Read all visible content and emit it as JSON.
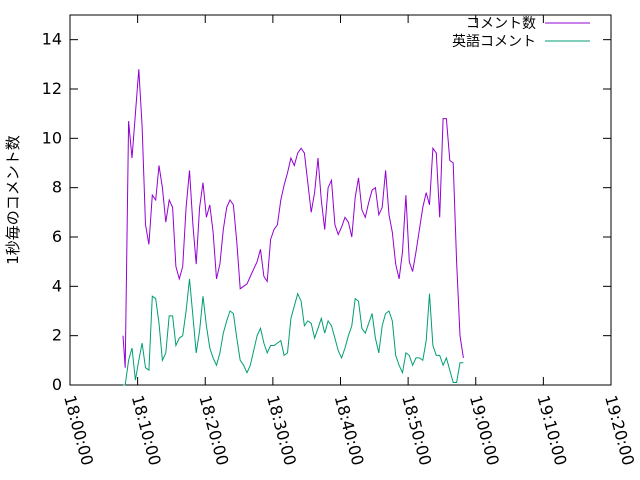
{
  "chart_data": {
    "type": "line",
    "title": "",
    "xlabel": "",
    "ylabel": "1秒毎のコメント数",
    "xlim": [
      "18:00:00",
      "19:20:00"
    ],
    "ylim": [
      0,
      15
    ],
    "yticks": [
      0,
      2,
      4,
      6,
      8,
      10,
      12,
      14
    ],
    "xticks": [
      "18:00:00",
      "18:10:00",
      "18:20:00",
      "18:30:00",
      "18:40:00",
      "18:50:00",
      "19:00:00",
      "19:10:00",
      "19:20:00"
    ],
    "grid": false,
    "legend_position": "top-right",
    "series": [
      {
        "name": "コメント数",
        "color": "#9400d3",
        "points": [
          [
            "18:07:50",
            2.0
          ],
          [
            "18:08:10",
            0.7
          ],
          [
            "18:08:40",
            10.7
          ],
          [
            "18:09:10",
            9.2
          ],
          [
            "18:09:40",
            11.0
          ],
          [
            "18:10:10",
            12.8
          ],
          [
            "18:10:40",
            10.5
          ],
          [
            "18:11:10",
            6.5
          ],
          [
            "18:11:40",
            5.7
          ],
          [
            "18:12:10",
            7.7
          ],
          [
            "18:12:40",
            7.5
          ],
          [
            "18:13:10",
            8.9
          ],
          [
            "18:13:40",
            8.0
          ],
          [
            "18:14:10",
            6.6
          ],
          [
            "18:14:40",
            7.5
          ],
          [
            "18:15:10",
            7.2
          ],
          [
            "18:15:40",
            4.8
          ],
          [
            "18:16:10",
            4.3
          ],
          [
            "18:16:40",
            4.8
          ],
          [
            "18:17:10",
            7.2
          ],
          [
            "18:17:40",
            8.7
          ],
          [
            "18:18:10",
            6.5
          ],
          [
            "18:18:40",
            4.9
          ],
          [
            "18:19:10",
            7.2
          ],
          [
            "18:19:40",
            8.2
          ],
          [
            "18:20:10",
            6.8
          ],
          [
            "18:20:40",
            7.3
          ],
          [
            "18:21:10",
            6.2
          ],
          [
            "18:21:40",
            4.3
          ],
          [
            "18:22:10",
            4.9
          ],
          [
            "18:22:40",
            6.3
          ],
          [
            "18:23:10",
            7.2
          ],
          [
            "18:23:40",
            7.5
          ],
          [
            "18:24:10",
            7.3
          ],
          [
            "18:24:40",
            5.8
          ],
          [
            "18:25:10",
            3.9
          ],
          [
            "18:25:40",
            4.0
          ],
          [
            "18:26:10",
            4.1
          ],
          [
            "18:26:40",
            4.4
          ],
          [
            "18:27:10",
            4.7
          ],
          [
            "18:27:40",
            5.0
          ],
          [
            "18:28:10",
            5.5
          ],
          [
            "18:28:40",
            4.4
          ],
          [
            "18:29:10",
            4.2
          ],
          [
            "18:29:40",
            5.9
          ],
          [
            "18:30:10",
            6.3
          ],
          [
            "18:30:40",
            6.5
          ],
          [
            "18:31:10",
            7.5
          ],
          [
            "18:31:40",
            8.1
          ],
          [
            "18:32:10",
            8.6
          ],
          [
            "18:32:40",
            9.2
          ],
          [
            "18:33:10",
            8.9
          ],
          [
            "18:33:40",
            9.4
          ],
          [
            "18:34:10",
            9.6
          ],
          [
            "18:34:40",
            9.4
          ],
          [
            "18:35:10",
            8.2
          ],
          [
            "18:35:40",
            7.0
          ],
          [
            "18:36:10",
            7.8
          ],
          [
            "18:36:40",
            9.2
          ],
          [
            "18:37:10",
            7.5
          ],
          [
            "18:37:40",
            6.3
          ],
          [
            "18:38:10",
            8.0
          ],
          [
            "18:38:40",
            8.3
          ],
          [
            "18:39:10",
            6.5
          ],
          [
            "18:39:40",
            6.1
          ],
          [
            "18:40:10",
            6.4
          ],
          [
            "18:40:40",
            6.8
          ],
          [
            "18:41:10",
            6.6
          ],
          [
            "18:41:40",
            6.0
          ],
          [
            "18:42:10",
            7.6
          ],
          [
            "18:42:40",
            8.4
          ],
          [
            "18:43:10",
            7.1
          ],
          [
            "18:43:40",
            6.8
          ],
          [
            "18:44:10",
            7.4
          ],
          [
            "18:44:40",
            7.9
          ],
          [
            "18:45:10",
            8.0
          ],
          [
            "18:45:40",
            6.9
          ],
          [
            "18:46:10",
            7.2
          ],
          [
            "18:46:40",
            8.7
          ],
          [
            "18:47:10",
            6.9
          ],
          [
            "18:47:40",
            6.2
          ],
          [
            "18:48:10",
            4.9
          ],
          [
            "18:48:40",
            4.3
          ],
          [
            "18:49:10",
            5.4
          ],
          [
            "18:49:40",
            7.7
          ],
          [
            "18:50:10",
            5.0
          ],
          [
            "18:50:40",
            4.6
          ],
          [
            "18:51:10",
            5.4
          ],
          [
            "18:51:40",
            6.3
          ],
          [
            "18:52:10",
            7.2
          ],
          [
            "18:52:40",
            7.8
          ],
          [
            "18:53:10",
            7.3
          ],
          [
            "18:53:40",
            9.6
          ],
          [
            "18:54:10",
            9.4
          ],
          [
            "18:54:40",
            6.8
          ],
          [
            "18:55:10",
            10.8
          ],
          [
            "18:55:40",
            10.8
          ],
          [
            "18:56:10",
            9.1
          ],
          [
            "18:56:40",
            9.0
          ],
          [
            "18:57:10",
            5.0
          ],
          [
            "18:57:40",
            2.0
          ],
          [
            "18:58:10",
            1.1
          ]
        ]
      },
      {
        "name": "英語コメント",
        "color": "#009e73",
        "points": [
          [
            "18:07:50",
            0.0
          ],
          [
            "18:08:10",
            0.0
          ],
          [
            "18:08:40",
            1.0
          ],
          [
            "18:09:10",
            1.5
          ],
          [
            "18:09:40",
            0.2
          ],
          [
            "18:10:10",
            1.0
          ],
          [
            "18:10:40",
            1.7
          ],
          [
            "18:11:10",
            0.7
          ],
          [
            "18:11:40",
            0.6
          ],
          [
            "18:12:10",
            3.6
          ],
          [
            "18:12:40",
            3.5
          ],
          [
            "18:13:10",
            2.5
          ],
          [
            "18:13:40",
            1.0
          ],
          [
            "18:14:10",
            1.3
          ],
          [
            "18:14:40",
            2.8
          ],
          [
            "18:15:10",
            2.8
          ],
          [
            "18:15:40",
            1.6
          ],
          [
            "18:16:10",
            1.9
          ],
          [
            "18:16:40",
            2.0
          ],
          [
            "18:17:10",
            3.0
          ],
          [
            "18:17:40",
            4.3
          ],
          [
            "18:18:10",
            2.8
          ],
          [
            "18:18:40",
            1.3
          ],
          [
            "18:19:10",
            2.2
          ],
          [
            "18:19:40",
            3.6
          ],
          [
            "18:20:10",
            2.4
          ],
          [
            "18:20:40",
            1.5
          ],
          [
            "18:21:10",
            1.1
          ],
          [
            "18:21:40",
            0.8
          ],
          [
            "18:22:10",
            1.3
          ],
          [
            "18:22:40",
            2.1
          ],
          [
            "18:23:10",
            2.6
          ],
          [
            "18:23:40",
            3.0
          ],
          [
            "18:24:10",
            2.9
          ],
          [
            "18:24:40",
            1.9
          ],
          [
            "18:25:10",
            1.0
          ],
          [
            "18:25:40",
            0.8
          ],
          [
            "18:26:10",
            0.5
          ],
          [
            "18:26:40",
            0.8
          ],
          [
            "18:27:10",
            1.4
          ],
          [
            "18:27:40",
            2.0
          ],
          [
            "18:28:10",
            2.3
          ],
          [
            "18:28:40",
            1.7
          ],
          [
            "18:29:10",
            1.3
          ],
          [
            "18:29:40",
            1.6
          ],
          [
            "18:30:10",
            1.6
          ],
          [
            "18:30:40",
            1.7
          ],
          [
            "18:31:10",
            1.8
          ],
          [
            "18:31:40",
            1.2
          ],
          [
            "18:32:10",
            1.3
          ],
          [
            "18:32:40",
            2.7
          ],
          [
            "18:33:10",
            3.2
          ],
          [
            "18:33:40",
            3.7
          ],
          [
            "18:34:10",
            3.4
          ],
          [
            "18:34:40",
            2.4
          ],
          [
            "18:35:10",
            2.6
          ],
          [
            "18:35:40",
            2.5
          ],
          [
            "18:36:10",
            1.9
          ],
          [
            "18:36:40",
            2.3
          ],
          [
            "18:37:10",
            2.7
          ],
          [
            "18:37:40",
            2.1
          ],
          [
            "18:38:10",
            2.6
          ],
          [
            "18:38:40",
            2.4
          ],
          [
            "18:39:10",
            1.9
          ],
          [
            "18:39:40",
            1.4
          ],
          [
            "18:40:10",
            1.1
          ],
          [
            "18:40:40",
            1.5
          ],
          [
            "18:41:10",
            2.0
          ],
          [
            "18:41:40",
            2.4
          ],
          [
            "18:42:10",
            3.5
          ],
          [
            "18:42:40",
            3.4
          ],
          [
            "18:43:10",
            2.3
          ],
          [
            "18:43:40",
            2.1
          ],
          [
            "18:44:10",
            2.5
          ],
          [
            "18:44:40",
            2.9
          ],
          [
            "18:45:10",
            1.9
          ],
          [
            "18:45:40",
            1.3
          ],
          [
            "18:46:10",
            2.4
          ],
          [
            "18:46:40",
            2.9
          ],
          [
            "18:47:10",
            3.0
          ],
          [
            "18:47:40",
            2.6
          ],
          [
            "18:48:10",
            1.2
          ],
          [
            "18:48:40",
            0.8
          ],
          [
            "18:49:10",
            0.5
          ],
          [
            "18:49:40",
            1.3
          ],
          [
            "18:50:10",
            1.2
          ],
          [
            "18:50:40",
            0.8
          ],
          [
            "18:51:10",
            1.1
          ],
          [
            "18:51:40",
            1.1
          ],
          [
            "18:52:10",
            1.0
          ],
          [
            "18:52:40",
            1.8
          ],
          [
            "18:53:10",
            3.7
          ],
          [
            "18:53:40",
            1.6
          ],
          [
            "18:54:10",
            1.2
          ],
          [
            "18:54:40",
            1.2
          ],
          [
            "18:55:10",
            0.8
          ],
          [
            "18:55:40",
            1.1
          ],
          [
            "18:56:10",
            0.6
          ],
          [
            "18:56:40",
            0.1
          ],
          [
            "18:57:10",
            0.1
          ],
          [
            "18:57:40",
            0.9
          ],
          [
            "18:58:10",
            0.9
          ]
        ]
      }
    ]
  }
}
